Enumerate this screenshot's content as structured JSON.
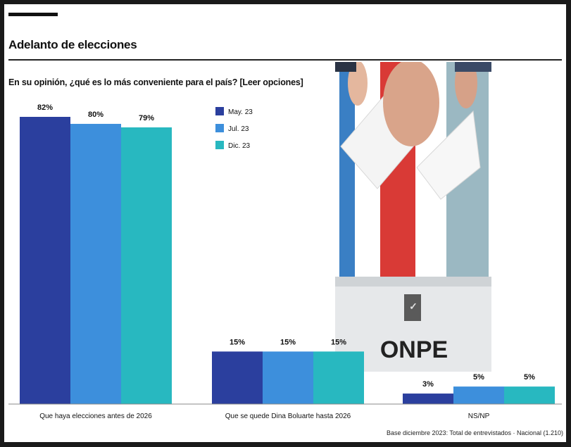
{
  "header": {
    "title": "Adelanto de elecciones",
    "question": "En su opinión, ¿qué es lo más conveniente para el país? [Leer opciones]",
    "source": "Base diciembre 2023: Total de entrevistados · Nacional (1.210)"
  },
  "photo": {
    "logo_text": "ONPE"
  },
  "colors": {
    "may": "#2b3f9e",
    "jul": "#3d8fdc",
    "dic": "#28b8c0"
  },
  "chart_data": {
    "type": "bar",
    "categories": [
      "Que haya elecciones antes de 2026",
      "Que se quede Dina Boluarte hasta 2026",
      "NS/NP"
    ],
    "series": [
      {
        "name": "May. 23",
        "values": [
          82,
          15,
          3
        ],
        "labels": [
          "82%",
          "15%",
          "3%"
        ]
      },
      {
        "name": "Jul. 23",
        "values": [
          80,
          15,
          5
        ],
        "labels": [
          "80%",
          "15%",
          "5%"
        ]
      },
      {
        "name": "Dic. 23",
        "values": [
          79,
          15,
          5
        ],
        "labels": [
          "79%",
          "15%",
          "5%"
        ]
      }
    ],
    "ylim": [
      0,
      100
    ],
    "legend": "top-center",
    "grid": false
  }
}
